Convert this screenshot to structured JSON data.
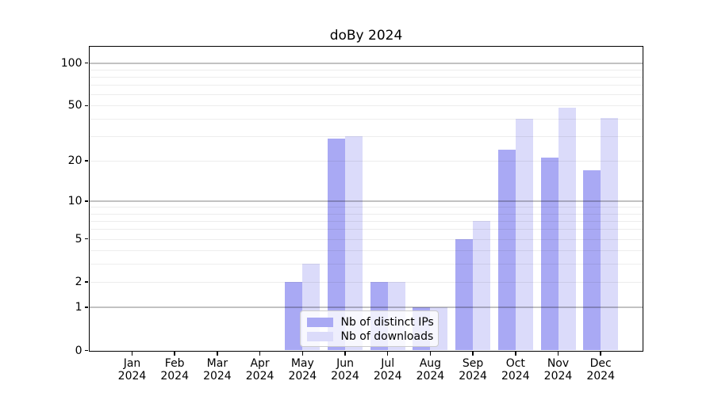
{
  "chart_data": {
    "type": "bar",
    "title": "doBy 2024",
    "categories": [
      "Jan",
      "Feb",
      "Mar",
      "Apr",
      "May",
      "Jun",
      "Jul",
      "Aug",
      "Sep",
      "Oct",
      "Nov",
      "Dec"
    ],
    "year_suffix": "2024",
    "series": [
      {
        "name": "Nb of distinct IPs",
        "color": "#a9a9f4",
        "values": [
          0,
          0,
          0,
          0,
          2,
          29,
          2,
          1,
          5,
          24,
          21,
          17
        ]
      },
      {
        "name": "Nb of downloads",
        "color": "#dbdbfa",
        "values": [
          0,
          0,
          0,
          0,
          3,
          30,
          2,
          1,
          7,
          40,
          48,
          41
        ]
      }
    ],
    "xlabel": "",
    "ylabel": "",
    "yscale": "log1p",
    "ylim": [
      0,
      131
    ],
    "yticks": [
      100,
      50,
      20,
      10,
      5,
      2,
      1,
      0
    ],
    "major_gridlines": [
      1,
      10,
      100
    ],
    "minor_gridlines": [
      2,
      3,
      4,
      5,
      6,
      7,
      8,
      9,
      20,
      30,
      40,
      50,
      60,
      70,
      80,
      90
    ],
    "grid": "horizontal",
    "legend_position": "inside-lower-center"
  }
}
